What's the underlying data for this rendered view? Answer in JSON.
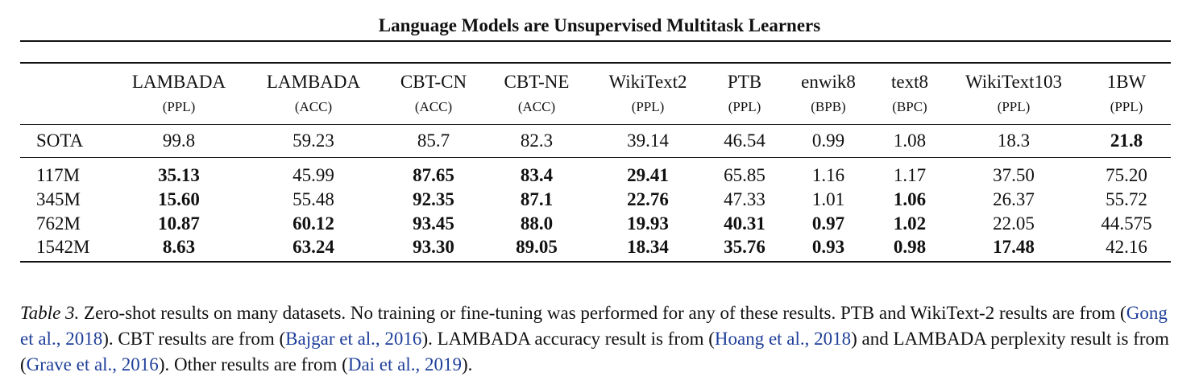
{
  "running_title": "Language Models are Unsupervised Multitask Learners",
  "table": {
    "columns": [
      {
        "name": "LAMBADA",
        "unit": "(PPL)"
      },
      {
        "name": "LAMBADA",
        "unit": "(ACC)"
      },
      {
        "name": "CBT-CN",
        "unit": "(ACC)"
      },
      {
        "name": "CBT-NE",
        "unit": "(ACC)"
      },
      {
        "name": "WikiText2",
        "unit": "(PPL)"
      },
      {
        "name": "PTB",
        "unit": "(PPL)"
      },
      {
        "name": "enwik8",
        "unit": "(BPB)"
      },
      {
        "name": "text8",
        "unit": "(BPC)"
      },
      {
        "name": "WikiText103",
        "unit": "(PPL)"
      },
      {
        "name": "1BW",
        "unit": "(PPL)"
      }
    ],
    "rows": [
      {
        "label": "SOTA",
        "values": [
          "99.8",
          "59.23",
          "85.7",
          "82.3",
          "39.14",
          "46.54",
          "0.99",
          "1.08",
          "18.3",
          "21.8"
        ],
        "bold": [
          false,
          false,
          false,
          false,
          false,
          false,
          false,
          false,
          false,
          true
        ]
      },
      {
        "label": "117M",
        "values": [
          "35.13",
          "45.99",
          "87.65",
          "83.4",
          "29.41",
          "65.85",
          "1.16",
          "1.17",
          "37.50",
          "75.20"
        ],
        "bold": [
          true,
          false,
          true,
          true,
          true,
          false,
          false,
          false,
          false,
          false
        ]
      },
      {
        "label": "345M",
        "values": [
          "15.60",
          "55.48",
          "92.35",
          "87.1",
          "22.76",
          "47.33",
          "1.01",
          "1.06",
          "26.37",
          "55.72"
        ],
        "bold": [
          true,
          false,
          true,
          true,
          true,
          false,
          false,
          true,
          false,
          false
        ]
      },
      {
        "label": "762M",
        "values": [
          "10.87",
          "60.12",
          "93.45",
          "88.0",
          "19.93",
          "40.31",
          "0.97",
          "1.02",
          "22.05",
          "44.575"
        ],
        "bold": [
          true,
          true,
          true,
          true,
          true,
          true,
          true,
          true,
          false,
          false
        ]
      },
      {
        "label": "1542M",
        "values": [
          "8.63",
          "63.24",
          "93.30",
          "89.05",
          "18.34",
          "35.76",
          "0.93",
          "0.98",
          "17.48",
          "42.16"
        ],
        "bold": [
          true,
          true,
          true,
          true,
          true,
          true,
          true,
          true,
          true,
          false
        ]
      }
    ]
  },
  "caption": {
    "label": "Table 3.",
    "seg1": " Zero-shot results on many datasets. No training or fine-tuning was performed for any of these results. PTB and WikiText-2 results are from (",
    "cite1": "Gong et al., 2018",
    "seg2": "). CBT results are from (",
    "cite2": "Bajgar et al., 2016",
    "seg3": "). LAMBADA accuracy result is from (",
    "cite3": "Hoang et al., 2018",
    "seg4": ") and LAMBADA perplexity result is from (",
    "cite4": "Grave et al., 2016",
    "seg5": "). Other results are from (",
    "cite5": "Dai et al., 2019",
    "seg6": ")."
  }
}
